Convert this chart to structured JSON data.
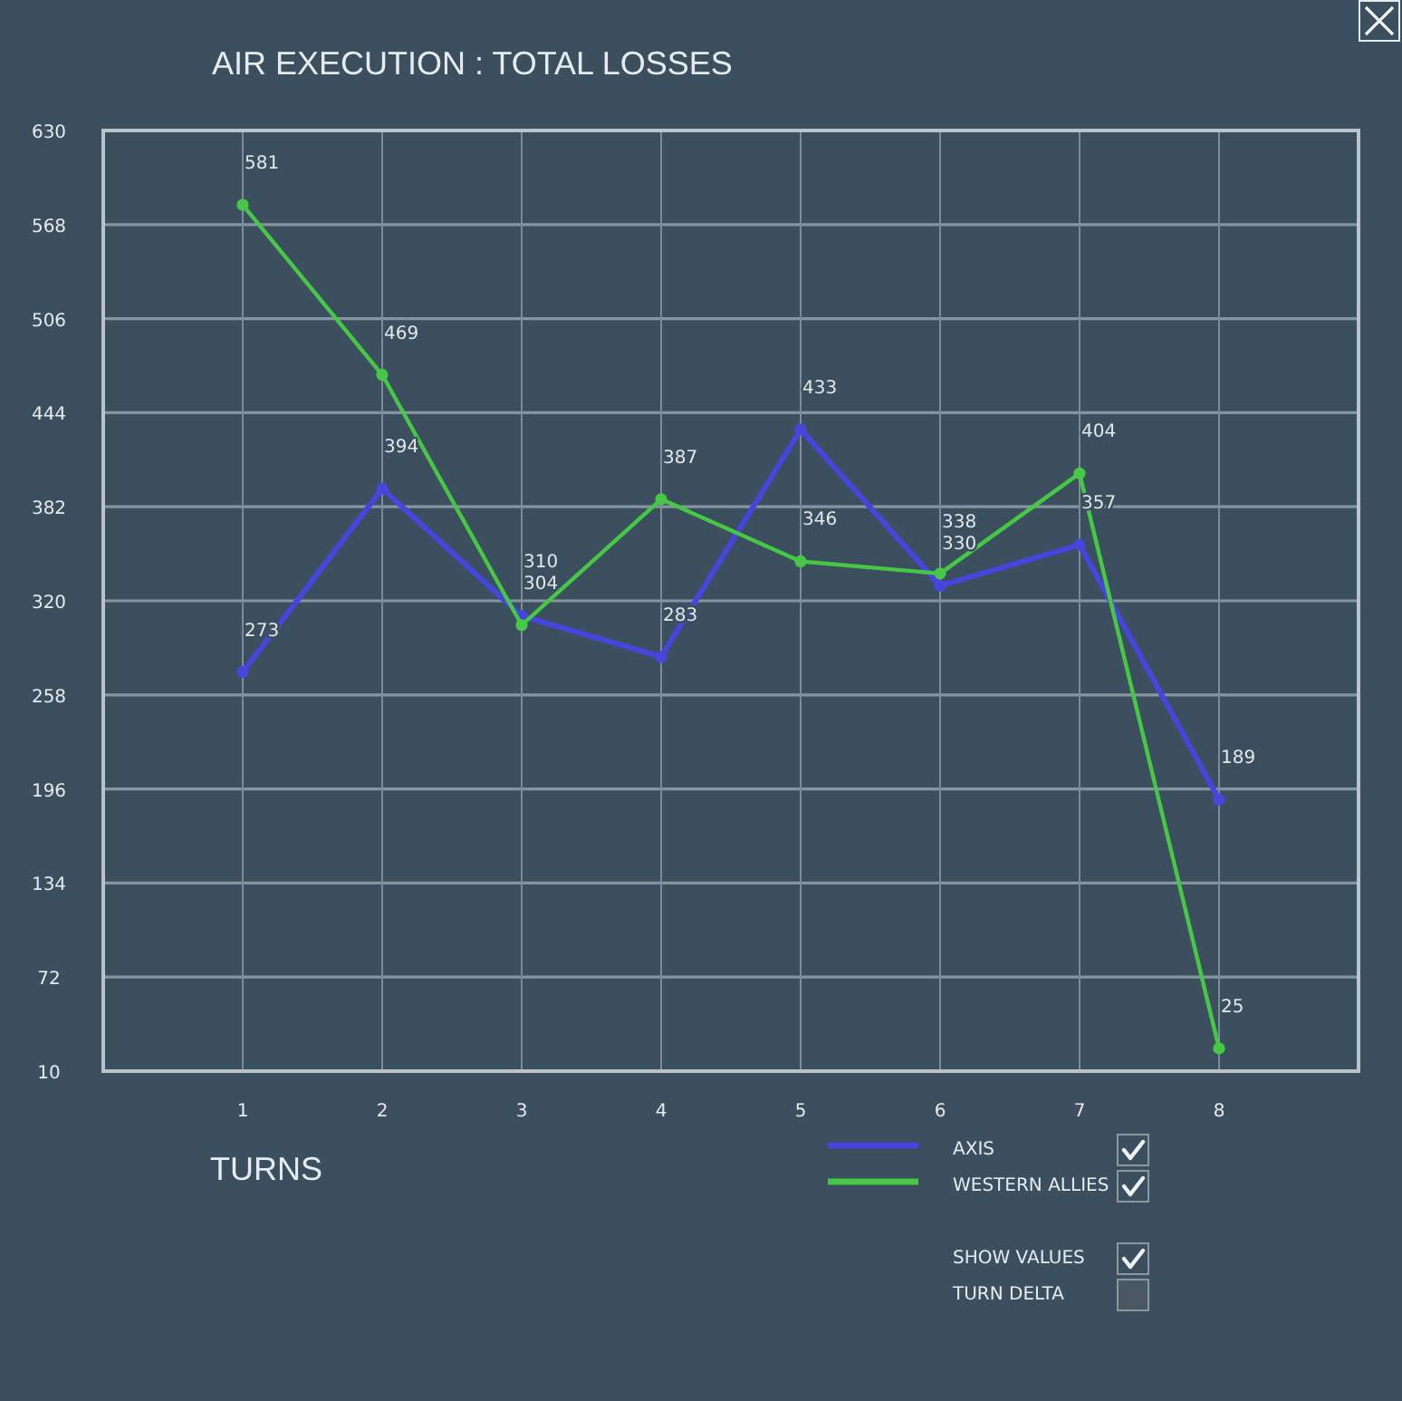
{
  "chart_data": {
    "type": "line",
    "title": "AIR EXECUTION : TOTAL LOSSES",
    "xlabel": "TURNS",
    "x": [
      1,
      2,
      3,
      4,
      5,
      6,
      7,
      8
    ],
    "xlim": [
      0,
      9
    ],
    "xticks": [
      1,
      2,
      3,
      4,
      5,
      6,
      7,
      8
    ],
    "ylim": [
      10,
      630
    ],
    "yticks": [
      10,
      72,
      134,
      196,
      258,
      320,
      382,
      444,
      506,
      568,
      630
    ],
    "series": [
      {
        "name": "AXIS",
        "color": "#4646dc",
        "values": [
          273,
          394,
          310,
          283,
          433,
          330,
          357,
          189
        ]
      },
      {
        "name": "WESTERN ALLIES",
        "color": "#46c846",
        "values": [
          581,
          469,
          304,
          387,
          346,
          338,
          404,
          25
        ]
      }
    ],
    "grid": true,
    "legend": "bottom right",
    "marker": "circle",
    "line_style": "solid",
    "data_labels": true,
    "annotations": [
      "SHOW VALUES",
      "TURN DELTA"
    ]
  }
}
